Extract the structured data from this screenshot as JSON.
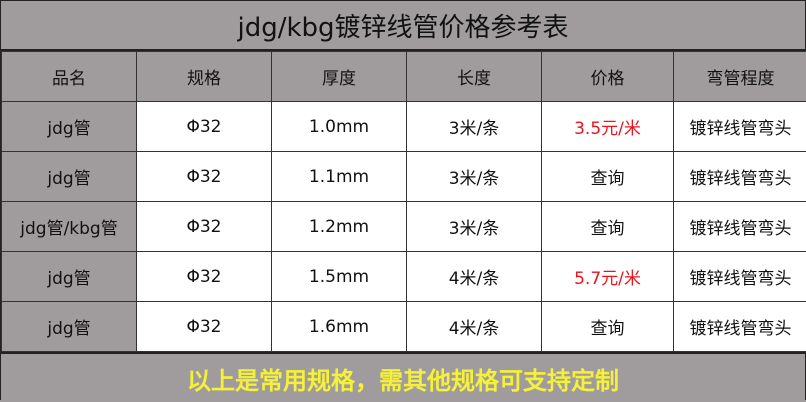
{
  "title": "jdg/kbg镀锌线管价格参考表",
  "headers": [
    "品名",
    "规格",
    "厚度",
    "长度",
    "价格",
    "弯管程度"
  ],
  "rows": [
    {
      "name": "jdg管",
      "spec": "Φ32",
      "thickness": "1.0mm",
      "length": "3米/条",
      "price": "3.5元/米",
      "price_red": true,
      "bend": "镀锌线管弯头"
    },
    {
      "name": "jdg管",
      "spec": "Φ32",
      "thickness": "1.1mm",
      "length": "3米/条",
      "price": "查询",
      "price_red": false,
      "bend": "镀锌线管弯头"
    },
    {
      "name": "jdg管/kbg管",
      "spec": "Φ32",
      "thickness": "1.2mm",
      "length": "3米/条",
      "price": "查询",
      "price_red": false,
      "bend": "镀锌线管弯头"
    },
    {
      "name": "jdg管",
      "spec": "Φ32",
      "thickness": "1.5mm",
      "length": "4米/条",
      "price": "5.7元/米",
      "price_red": true,
      "bend": "镀锌线管弯头"
    },
    {
      "name": "jdg管",
      "spec": "Φ32",
      "thickness": "1.6mm",
      "length": "4米/条",
      "price": "查询",
      "price_red": false,
      "bend": "镀锌线管弯头"
    }
  ],
  "footer": "以上是常用规格，需其他规格可支持定制",
  "colors": {
    "gray": "#a09c9d",
    "red": "#e8141b",
    "yellow": "#f5f03a"
  }
}
